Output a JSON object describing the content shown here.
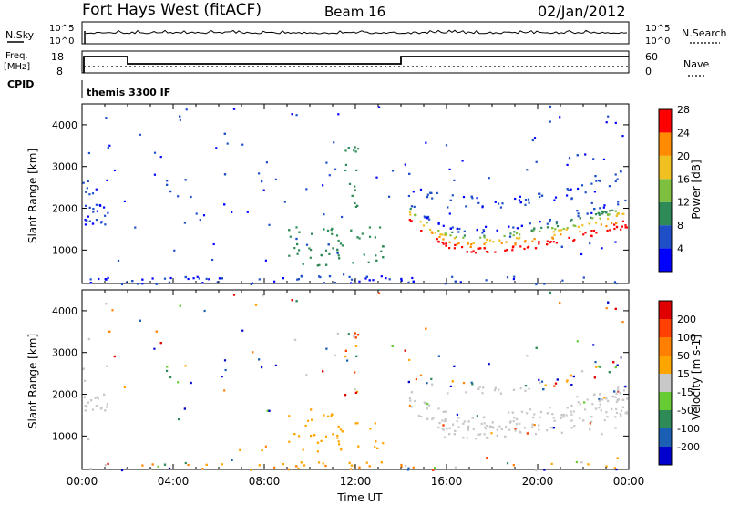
{
  "header": {
    "station": "Fort Hays West (fitACF)",
    "beam": "Beam 16",
    "date": "02/Jan/2012"
  },
  "summary": {
    "nsky_label": "N.Sky",
    "nsearch_label": "N.Search",
    "noise_ticks": [
      "10^5",
      "10^0"
    ],
    "freq_label_1": "Freq.",
    "freq_label_2": "[MHz]",
    "freq_ticks": [
      "18",
      "8"
    ],
    "nave_label": "Nave",
    "nave_ticks": [
      "60",
      "0"
    ],
    "cpid_label": "CPID",
    "cpid_text": "themis 3300 IF"
  },
  "chart_data": [
    {
      "type": "heatmap",
      "title": "",
      "xlabel": "Time UT",
      "ylabel": "Slant Range [km]",
      "x_ticks": [
        "00:00",
        "04:00",
        "08:00",
        "12:00",
        "16:00",
        "20:00",
        "00:00"
      ],
      "y_ticks": [
        "1000",
        "2000",
        "3000",
        "4000"
      ],
      "xlim_hours": [
        0,
        24
      ],
      "ylim_km": [
        200,
        4500
      ],
      "colorbar": {
        "label": "Power [dB]",
        "ticks": [
          "4",
          "8",
          "12",
          "16",
          "20",
          "24",
          "28"
        ],
        "range": [
          0,
          30
        ],
        "colors": [
          "#0000ff",
          "#1f4fc8",
          "#2e8b57",
          "#7fbf3f",
          "#f0c020",
          "#ff8c00",
          "#ff0000"
        ]
      },
      "features": [
        {
          "name": "early evening echoes",
          "t_start": 0.0,
          "t_end": 1.0,
          "r_start": 1600,
          "r_end": 2700,
          "value": 8
        },
        {
          "name": "near range ground scatter",
          "t_start": 0.0,
          "t_end": 24.0,
          "r_start": 250,
          "r_end": 400,
          "value": 6
        },
        {
          "name": "midday echoes",
          "t_start": 9.0,
          "t_end": 13.0,
          "r_start": 700,
          "r_end": 1500,
          "value": 8
        },
        {
          "name": "evening main band",
          "t_start": 14.5,
          "t_end": 24.0,
          "r_min": 950,
          "value": 24
        },
        {
          "name": "upper band",
          "t_start": 14.5,
          "t_end": 24.0,
          "r_start": 1800,
          "r_end": 3000,
          "value": 6
        }
      ]
    },
    {
      "type": "heatmap",
      "title": "",
      "xlabel": "Time UT",
      "ylabel": "Slant Range [km]",
      "x_ticks": [
        "00:00",
        "04:00",
        "08:00",
        "12:00",
        "16:00",
        "20:00",
        "00:00"
      ],
      "y_ticks": [
        "1000",
        "2000",
        "3000",
        "4000"
      ],
      "xlim_hours": [
        0,
        24
      ],
      "ylim_km": [
        200,
        4500
      ],
      "colorbar": {
        "label": "Velocity [m s-1]",
        "ticks": [
          "200",
          "100",
          "50",
          "15",
          "-15",
          "-50",
          "-100",
          "-200"
        ],
        "colors": [
          "#0000cd",
          "#1a5fb4",
          "#2e8b57",
          "#66cc33",
          "#c8c8c8",
          "#ffa500",
          "#ff7f00",
          "#ff4000",
          "#e00000"
        ]
      },
      "features": [
        {
          "name": "ground scatter band",
          "t_start": 14.5,
          "t_end": 24.0,
          "r_min": 950,
          "value": 0
        },
        {
          "name": "near range westward flow",
          "t_start": 0.0,
          "t_end": 14.0,
          "r_start": 250,
          "r_end": 400,
          "value": -50
        }
      ]
    }
  ]
}
